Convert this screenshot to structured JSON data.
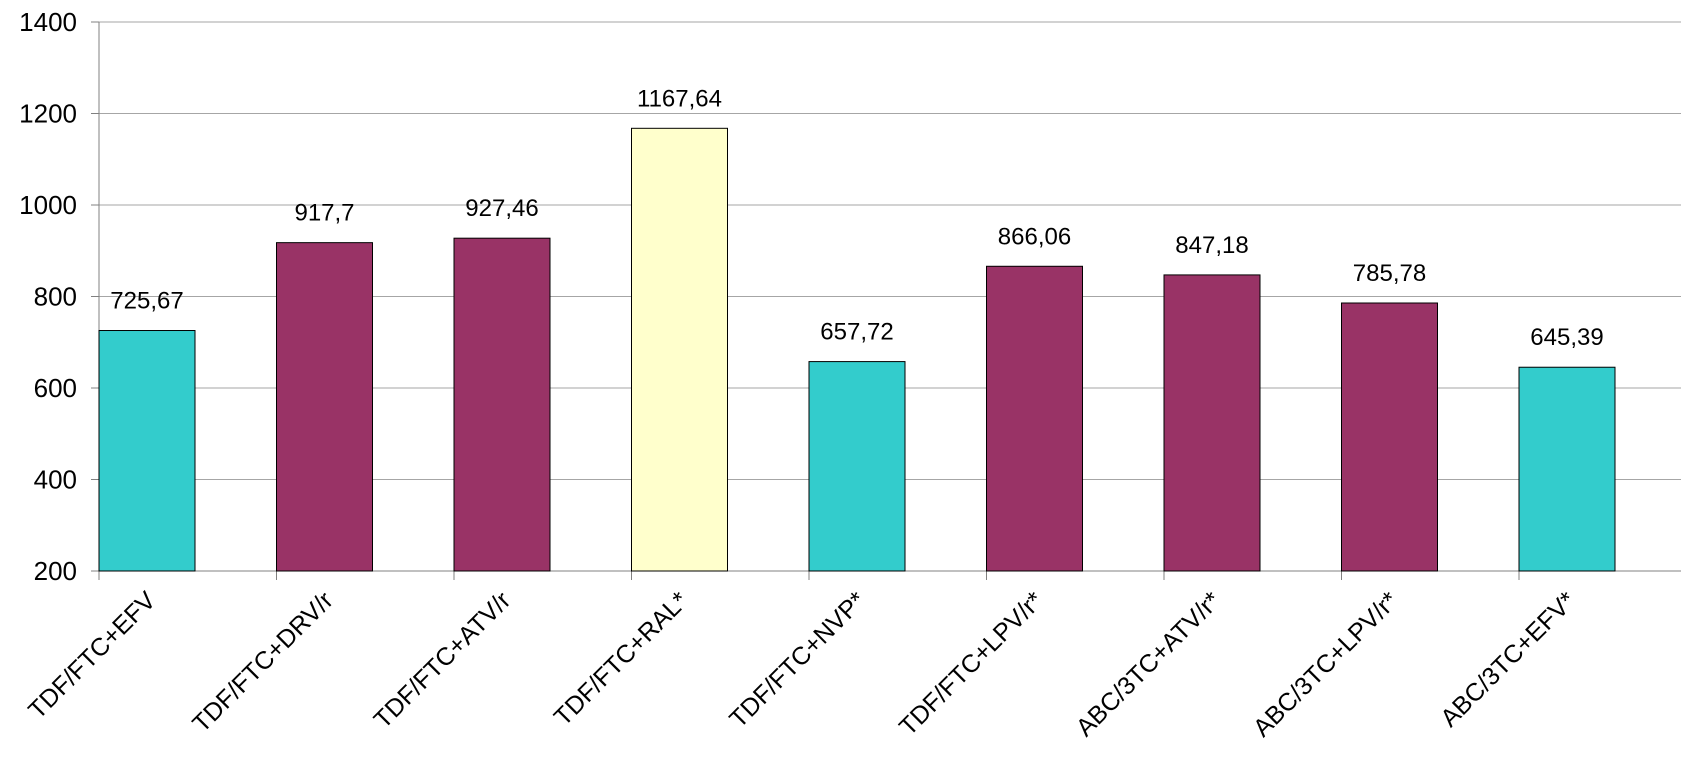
{
  "chart_data": {
    "type": "bar",
    "categories": [
      "TDF/FTC+EFV",
      "TDF/FTC+DRV/r",
      "TDF/FTC+ATV/r",
      "TDF/FTC+RAL*",
      "TDF/FTC+NVP*",
      "TDF/FTC+LPV/r*",
      "ABC/3TC+ATV/r*",
      "ABC/3TC+LPV/r*",
      "ABC/3TC+EFV*"
    ],
    "values": [
      725.67,
      917.7,
      927.46,
      1167.64,
      657.72,
      866.06,
      847.18,
      785.78,
      645.39
    ],
    "value_labels": [
      "725,67",
      "917,7",
      "927,46",
      "1167,64",
      "657,72",
      "866,06",
      "847,18",
      "785,78",
      "645,39"
    ],
    "bar_colors": [
      "#33cccc",
      "#993366",
      "#993366",
      "#ffffcc",
      "#33cccc",
      "#993366",
      "#993366",
      "#993366",
      "#33cccc"
    ],
    "ylim": [
      200,
      1400
    ],
    "yticks": [
      200,
      400,
      600,
      800,
      1000,
      1200,
      1400
    ],
    "title": "",
    "xlabel": "",
    "ylabel": "",
    "grid": true,
    "legend": "none"
  }
}
